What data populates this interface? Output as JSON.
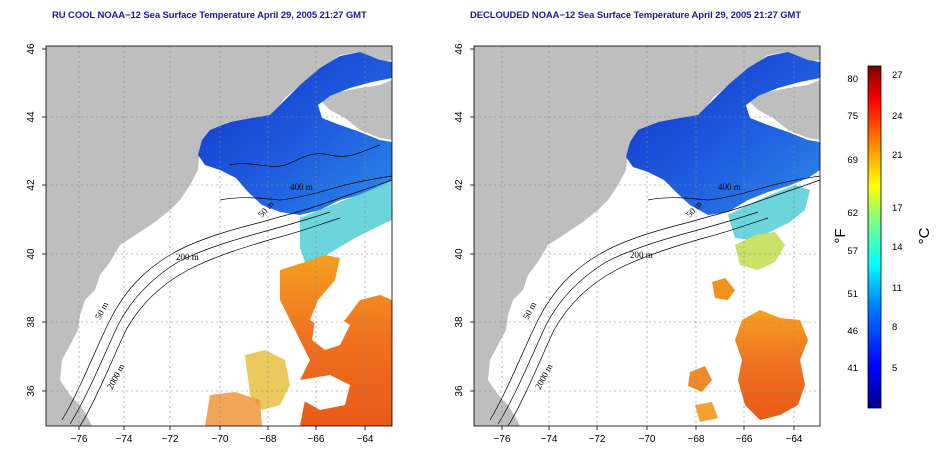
{
  "panels": [
    {
      "title": "RU COOL NOAA−12 Sea Surface Temperature April 29, 2005 21:27 GMT",
      "contour_labels": [
        "400 m",
        "50 m",
        "200 m",
        "50 m",
        "2000 m"
      ]
    },
    {
      "title": "DECLOUDED NOAA−12 Sea Surface Temperature April 29, 2005 21:27 GMT",
      "contour_labels": [
        "400 m",
        "50 m",
        "200 m",
        "50 m",
        "2000 m"
      ]
    }
  ],
  "axes": {
    "lon_ticks": [
      "−76",
      "−74",
      "−72",
      "−70",
      "−68",
      "−66",
      "−64"
    ],
    "lat_ticks": [
      "46",
      "44",
      "42",
      "40",
      "38",
      "36"
    ]
  },
  "colorbar": {
    "fahrenheit_unit": "°F",
    "celsius_unit": "°C",
    "fahrenheit_labels": [
      "80",
      "75",
      "69",
      "62",
      "57",
      "51",
      "46",
      "41"
    ],
    "celsius_labels": [
      "27",
      "24",
      "21",
      "17",
      "14",
      "11",
      "8",
      "5"
    ]
  },
  "colors": {
    "land": "#bebebe",
    "cloud": "#ffffff",
    "cold_water": "#1a3fd6",
    "warm_water": "#f07a1e",
    "title": "#1a1aa0"
  }
}
